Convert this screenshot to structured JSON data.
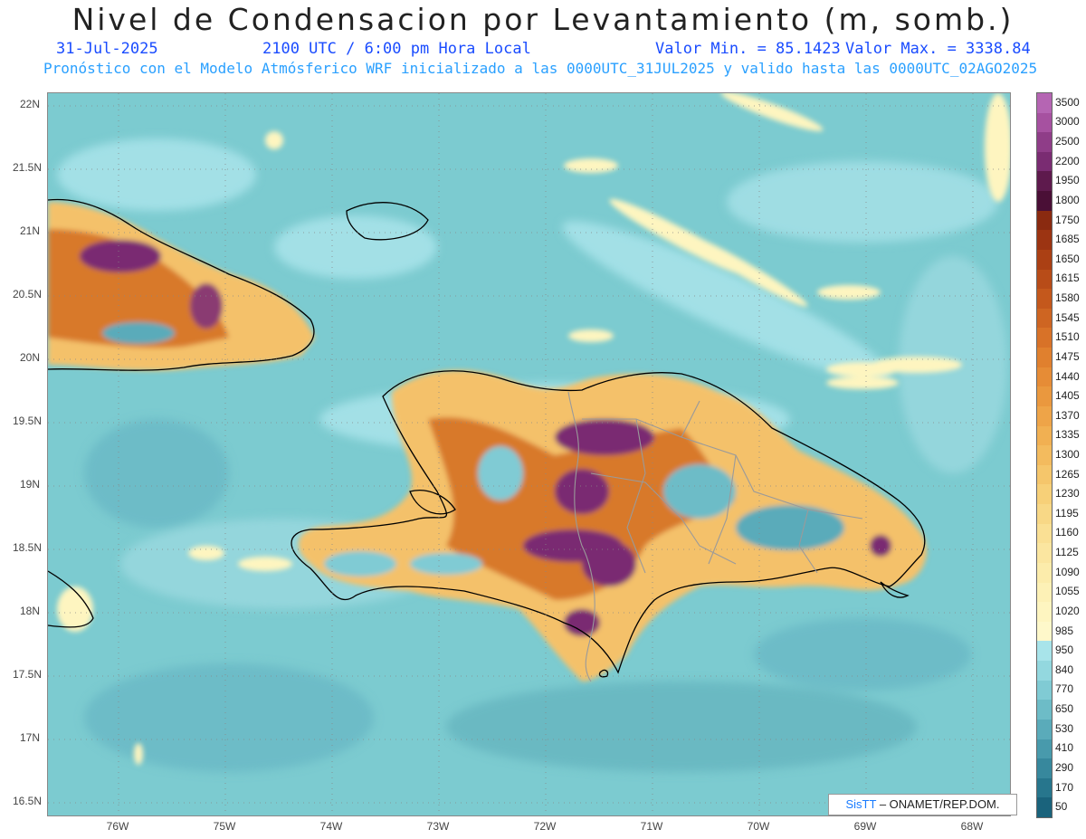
{
  "title": "Nivel de Condensacion por Levantamiento (m, somb.)",
  "date": "31-Jul-2025",
  "time": "2100 UTC / 6:00 pm Hora Local",
  "min_label": "Valor Min. = 85.1423",
  "max_label": "Valor Max. = 3338.84",
  "model_line": "Pronóstico con el Modelo Atmósferico WRF inicializado a las 0000UTC_31JUL2025 y valido hasta las  0000UTC_02AGO2025",
  "credit": {
    "brand": "SisTT",
    "rest": "– ONAMET/REP.DOM."
  },
  "lat_labels": [
    "22N",
    "21.5N",
    "21N",
    "20.5N",
    "20N",
    "19.5N",
    "19N",
    "18.5N",
    "18N",
    "17.5N",
    "17N",
    "16.5N"
  ],
  "lon_labels": [
    "76W",
    "75W",
    "74W",
    "73W",
    "72W",
    "71W",
    "70W",
    "69W",
    "68W"
  ],
  "legend": {
    "labels": [
      "3500",
      "3000",
      "2500",
      "2200",
      "1950",
      "1800",
      "1750",
      "1685",
      "1650",
      "1615",
      "1580",
      "1545",
      "1510",
      "1475",
      "1440",
      "1405",
      "1370",
      "1335",
      "1300",
      "1265",
      "1230",
      "1195",
      "1160",
      "1125",
      "1090",
      "1055",
      "1020",
      "985",
      "950",
      "840",
      "770",
      "650",
      "530",
      "410",
      "290",
      "170",
      "50"
    ],
    "colors": [
      "#b565b3",
      "#a651a0",
      "#8f3d88",
      "#7a2c72",
      "#5e1a4d",
      "#4a0f36",
      "#8a2a10",
      "#9c3412",
      "#ab4014",
      "#b84c18",
      "#c4581c",
      "#ce6522",
      "#d87228",
      "#e0802e",
      "#e68c36",
      "#ea983e",
      "#ee a448",
      "#f1b052",
      "#f3bb5e",
      "#f5c66b",
      "#f7d078",
      "#f8d886",
      "#fae094",
      "#fbe6a0",
      "#fcecab",
      "#fdf1b6",
      "#fef5c0",
      "#fef8ca",
      "#a8e4ea",
      "#93d8df",
      "#80cbd4",
      "#6dbcc7",
      "#5aabba",
      "#489aac",
      "#37889d",
      "#27768d",
      "#1a637c"
    ]
  },
  "colors": {
    "ocean": "#7ccbd0",
    "ocean_light": "#a3e0e6",
    "land_low": "#f4c16a",
    "land_mid": "#d8792a",
    "land_high": "#7a2c72",
    "title_blue": "#1a4cff",
    "sub_blue": "#2aa0ff"
  }
}
